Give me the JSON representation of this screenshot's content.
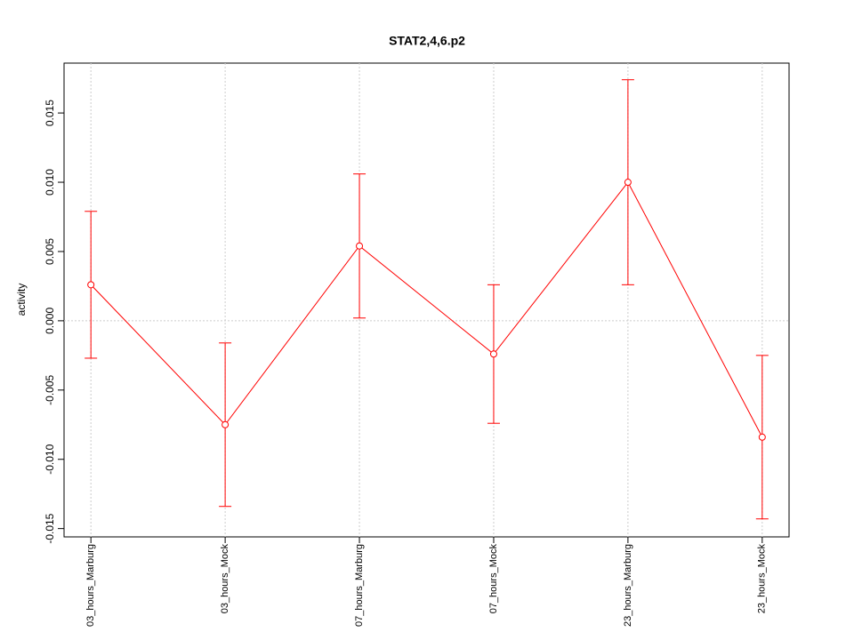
{
  "chart_data": {
    "type": "line",
    "title": "STAT2,4,6.p2",
    "ylabel": "activity",
    "categories": [
      "03_hours_Marburg",
      "03_hours_Mock",
      "07_hours_Marburg",
      "07_hours_Mock",
      "23_hours_Marburg",
      "23_hours_Mock"
    ],
    "series": [
      {
        "name": "activity",
        "color": "#ff0000",
        "values": [
          0.0026,
          -0.0075,
          0.0054,
          -0.0024,
          0.01,
          -0.0084
        ],
        "errors": [
          0.0053,
          0.0059,
          0.0052,
          0.005,
          0.0074,
          0.0059
        ]
      }
    ],
    "ylim": [
      -0.0156,
      0.0186
    ],
    "yticks": [
      {
        "value": -0.015,
        "label": "-0.015"
      },
      {
        "value": -0.01,
        "label": "-0.010"
      },
      {
        "value": -0.005,
        "label": "-0.005"
      },
      {
        "value": 0,
        "label": "0.000"
      },
      {
        "value": 0.005,
        "label": "0.005"
      },
      {
        "value": 0.01,
        "label": "0.010"
      },
      {
        "value": 0.015,
        "label": "0.015"
      }
    ],
    "hline": 0,
    "grid": true
  }
}
